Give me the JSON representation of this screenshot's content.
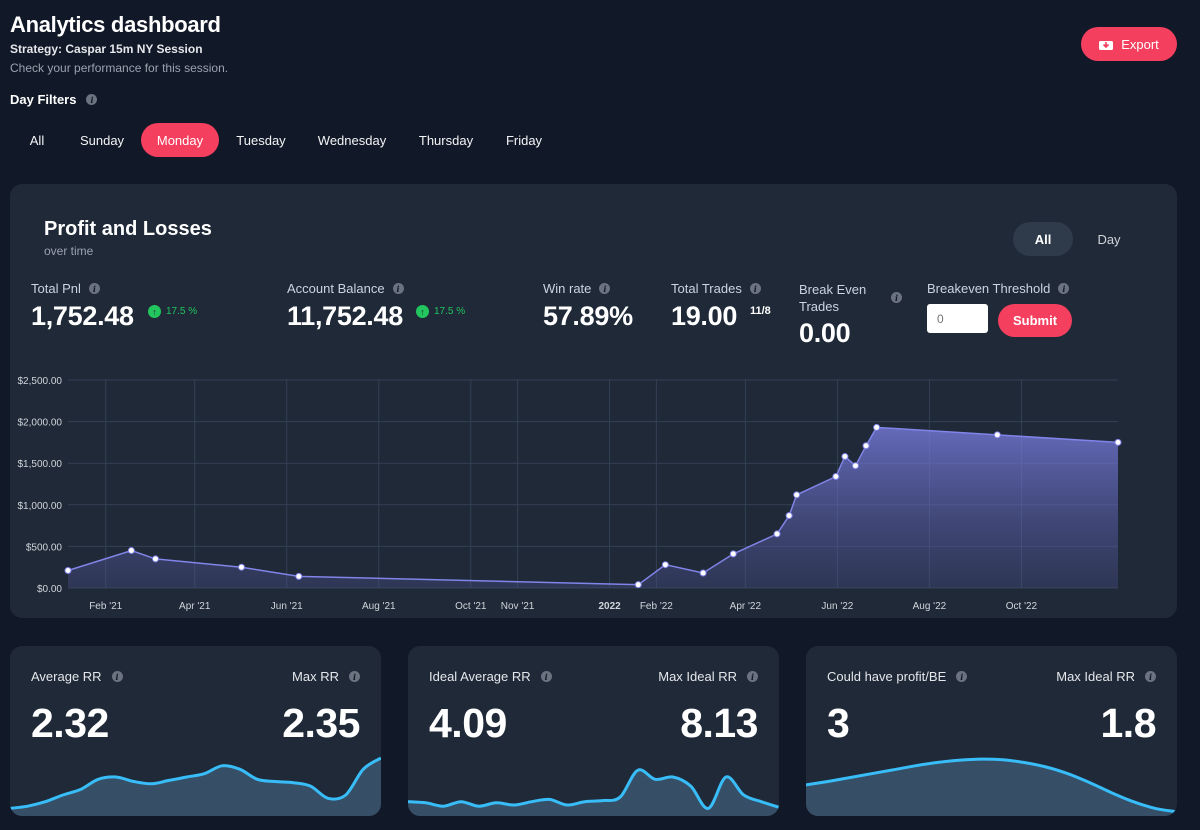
{
  "header": {
    "title": "Analytics dashboard",
    "strategy": "Strategy: Caspar 15m NY Session",
    "subtitle": "Check your performance for this session.",
    "export_label": "Export"
  },
  "day_filters": {
    "label": "Day Filters",
    "tabs": [
      "All",
      "Sunday",
      "Monday",
      "Tuesday",
      "Wednesday",
      "Thursday",
      "Friday"
    ],
    "active": "Monday"
  },
  "pnl_card": {
    "title": "Profit and Losses",
    "subtitle": "over time",
    "toggle": [
      "All",
      "Day"
    ],
    "toggle_active": "All",
    "stats": {
      "total_pnl": {
        "label": "Total Pnl",
        "value": "1,752.48",
        "change": "17.5 %"
      },
      "account_balance": {
        "label": "Account Balance",
        "value": "11,752.48",
        "change": "17.5 %"
      },
      "win_rate": {
        "label": "Win rate",
        "value": "57.89%"
      },
      "total_trades": {
        "label": "Total Trades",
        "value": "19.00",
        "ratio": "11/8"
      },
      "break_even": {
        "label": "Break Even Trades",
        "value": "0.00"
      },
      "threshold": {
        "label": "Breakeven Threshold",
        "placeholder": "0",
        "submit_label": "Submit"
      }
    }
  },
  "colors": {
    "background": "#111827",
    "card": "#1f2937",
    "accent": "#f43f5e",
    "positive": "#22c55e",
    "line": "#8184e8",
    "spark": "#38bdf8"
  },
  "chart_data": {
    "type": "area",
    "x_tick_labels": [
      "Feb '21",
      "Apr '21",
      "Jun '21",
      "Aug '21",
      "Oct '21",
      "Nov '21",
      "2022",
      "Feb '22",
      "Apr '22",
      "Jun '22",
      "Aug '22",
      "Oct '22"
    ],
    "y_tick_labels": [
      "$0.00",
      "$500.00",
      "$1,000.00",
      "$1,500.00",
      "$2,000.00",
      "$2,500.00"
    ],
    "ylim": [
      0,
      2500
    ],
    "grid": true,
    "points": [
      {
        "x": "2021-01-07",
        "y": 210
      },
      {
        "x": "2021-02-18",
        "y": 450
      },
      {
        "x": "2021-03-06",
        "y": 350
      },
      {
        "x": "2021-05-02",
        "y": 250
      },
      {
        "x": "2021-06-09",
        "y": 140
      },
      {
        "x": "2022-01-20",
        "y": 40
      },
      {
        "x": "2022-02-07",
        "y": 280
      },
      {
        "x": "2022-03-04",
        "y": 180
      },
      {
        "x": "2022-03-24",
        "y": 410
      },
      {
        "x": "2022-04-22",
        "y": 650
      },
      {
        "x": "2022-04-30",
        "y": 870
      },
      {
        "x": "2022-05-05",
        "y": 1120
      },
      {
        "x": "2022-05-31",
        "y": 1340
      },
      {
        "x": "2022-06-06",
        "y": 1580
      },
      {
        "x": "2022-06-13",
        "y": 1470
      },
      {
        "x": "2022-06-20",
        "y": 1710
      },
      {
        "x": "2022-06-27",
        "y": 1930
      },
      {
        "x": "2022-09-15",
        "y": 1840
      },
      {
        "x": "2022-12-04",
        "y": 1750
      }
    ]
  },
  "cards": [
    {
      "left_label": "Average RR",
      "left_value": "2.32",
      "right_label": "Max RR",
      "right_value": "2.35",
      "spark": [
        0.1,
        0.14,
        0.22,
        0.34,
        0.44,
        0.62,
        0.66,
        0.58,
        0.54,
        0.6,
        0.66,
        0.72,
        0.86,
        0.8,
        0.62,
        0.58,
        0.56,
        0.5,
        0.28,
        0.34,
        0.8,
        1.0
      ]
    },
    {
      "left_label": "Ideal Average RR",
      "left_value": "4.09",
      "right_label": "Max Ideal RR",
      "right_value": "8.13",
      "spark": [
        0.22,
        0.2,
        0.14,
        0.22,
        0.14,
        0.2,
        0.16,
        0.22,
        0.26,
        0.16,
        0.22,
        0.24,
        0.3,
        0.78,
        0.62,
        0.66,
        0.5,
        0.1,
        0.66,
        0.34,
        0.22,
        0.12
      ]
    },
    {
      "left_label": "Could have profit/BE",
      "left_value": "3",
      "right_label": "Max Ideal RR",
      "right_value": "1.8",
      "spark": [
        0.52,
        0.58,
        0.65,
        0.72,
        0.79,
        0.86,
        0.92,
        0.96,
        0.98,
        0.97,
        0.92,
        0.84,
        0.72,
        0.56,
        0.38,
        0.22,
        0.1,
        0.04
      ]
    }
  ]
}
